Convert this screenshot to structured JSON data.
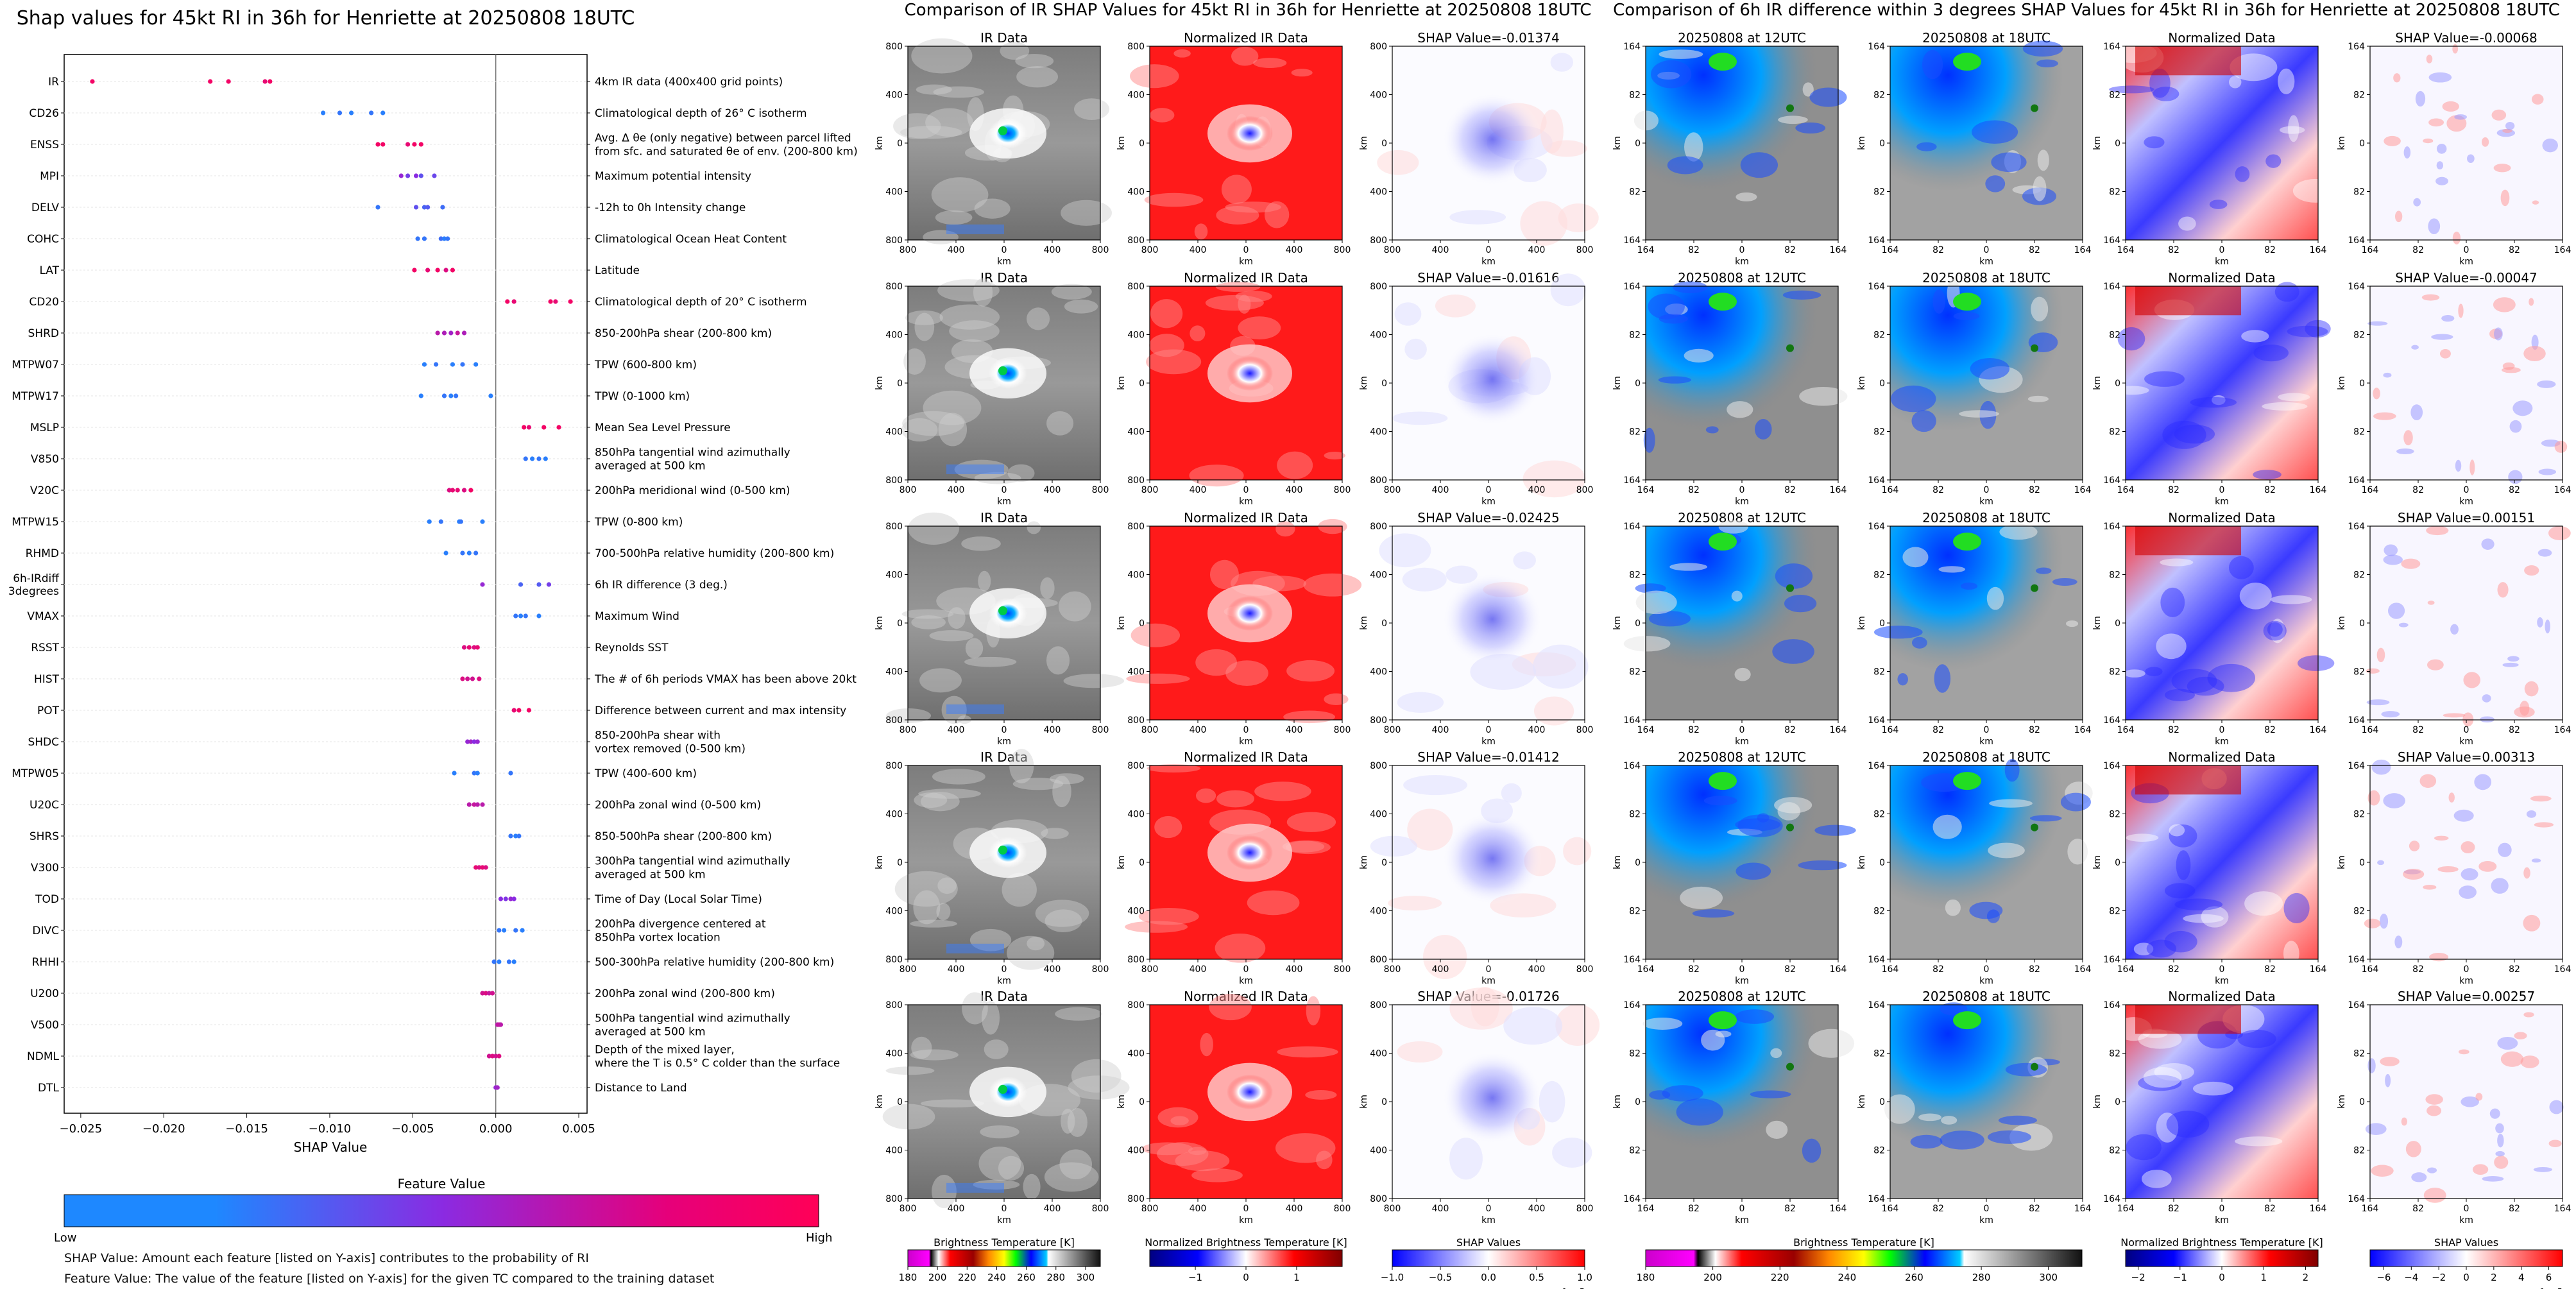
{
  "chart_data": [
    {
      "type": "scatter",
      "title": "Shap values for 45kt RI in 36h for Henriette at 20250808 18UTC",
      "xlabel": "SHAP Value",
      "ylabel": "",
      "xlim": [
        -0.026,
        0.0055
      ],
      "xticks": [
        "−0.025",
        "−0.020",
        "−0.015",
        "−0.010",
        "−0.005",
        "0.000",
        "0.005"
      ],
      "xtick_values": [
        -0.025,
        -0.02,
        -0.015,
        -0.01,
        -0.005,
        0.0,
        0.005
      ],
      "grid": false,
      "colorbar": {
        "title": "Feature Value",
        "low": "Low",
        "high": "High",
        "colors": [
          "#1e88ff",
          "#8a2be2",
          "#ff0057"
        ]
      },
      "features": [
        {
          "name": "IR",
          "desc": "4km IR data (400x400 grid points)",
          "points": [
            [
              -0.0243,
              0.95
            ],
            [
              -0.0172,
              0.95
            ],
            [
              -0.0161,
              0.95
            ],
            [
              -0.0139,
              0.9
            ],
            [
              -0.0136,
              0.95
            ]
          ]
        },
        {
          "name": "CD26",
          "desc": "Climatological depth of 26° C isotherm",
          "points": [
            [
              -0.0104,
              0.05
            ],
            [
              -0.0094,
              0.1
            ],
            [
              -0.0087,
              0.05
            ],
            [
              -0.0075,
              0.1
            ],
            [
              -0.0068,
              0.05
            ]
          ]
        },
        {
          "name": "ENSS",
          "desc": "Avg. Δ θe (only negative) between parcel lifted\nfrom sfc. and saturated θe of env. (200-800 km)",
          "points": [
            [
              -0.0071,
              0.95
            ],
            [
              -0.0068,
              0.95
            ],
            [
              -0.0053,
              0.9
            ],
            [
              -0.0049,
              0.95
            ],
            [
              -0.0045,
              0.95
            ]
          ]
        },
        {
          "name": "MPI",
          "desc": "Maximum potential intensity",
          "points": [
            [
              -0.0057,
              0.55
            ],
            [
              -0.0053,
              0.4
            ],
            [
              -0.0048,
              0.5
            ],
            [
              -0.0045,
              0.3
            ],
            [
              -0.0037,
              0.35
            ]
          ]
        },
        {
          "name": "DELV",
          "desc": "-12h to 0h Intensity change",
          "points": [
            [
              -0.0071,
              0.1
            ],
            [
              -0.0048,
              0.3
            ],
            [
              -0.0043,
              0.2
            ],
            [
              -0.0041,
              0.25
            ],
            [
              -0.0032,
              0.15
            ]
          ]
        },
        {
          "name": "COHC",
          "desc": "Climatological Ocean Heat Content",
          "points": [
            [
              -0.0047,
              0.1
            ],
            [
              -0.0043,
              0.1
            ],
            [
              -0.0033,
              0.15
            ],
            [
              -0.0031,
              0.05
            ],
            [
              -0.0029,
              0.1
            ]
          ]
        },
        {
          "name": "LAT",
          "desc": "Latitude",
          "points": [
            [
              -0.0049,
              0.95
            ],
            [
              -0.0041,
              0.9
            ],
            [
              -0.0035,
              0.95
            ],
            [
              -0.003,
              0.85
            ],
            [
              -0.0026,
              0.95
            ]
          ]
        },
        {
          "name": "CD20",
          "desc": "Climatological depth of 20° C isotherm",
          "points": [
            [
              0.0007,
              0.95
            ],
            [
              0.0011,
              0.9
            ],
            [
              0.0033,
              0.95
            ],
            [
              0.0036,
              0.9
            ],
            [
              0.0045,
              0.95
            ]
          ]
        },
        {
          "name": "SHRD",
          "desc": "850-200hPa shear (200-800 km)",
          "points": [
            [
              -0.0035,
              0.7
            ],
            [
              -0.0031,
              0.65
            ],
            [
              -0.0027,
              0.6
            ],
            [
              -0.0023,
              0.75
            ],
            [
              -0.0019,
              0.65
            ]
          ]
        },
        {
          "name": "MTPW07",
          "desc": "TPW (600-800 km)",
          "points": [
            [
              -0.0043,
              0.05
            ],
            [
              -0.0036,
              0.1
            ],
            [
              -0.0026,
              0.05
            ],
            [
              -0.002,
              0.1
            ],
            [
              -0.0012,
              0.05
            ]
          ]
        },
        {
          "name": "MTPW17",
          "desc": "TPW (0-1000 km)",
          "points": [
            [
              -0.0045,
              0.05
            ],
            [
              -0.0031,
              0.1
            ],
            [
              -0.0027,
              0.05
            ],
            [
              -0.0024,
              0.1
            ],
            [
              -0.0003,
              0.05
            ]
          ]
        },
        {
          "name": "MSLP",
          "desc": "Mean Sea Level Pressure",
          "points": [
            [
              0.0017,
              0.95
            ],
            [
              0.002,
              0.9
            ],
            [
              0.0029,
              0.95
            ],
            [
              0.0038,
              0.95
            ]
          ]
        },
        {
          "name": "V850",
          "desc": "850hPa tangential wind azimuthally\naveraged at 500 km",
          "points": [
            [
              0.0018,
              0.1
            ],
            [
              0.0022,
              0.05
            ],
            [
              0.0026,
              0.1
            ],
            [
              0.003,
              0.05
            ]
          ]
        },
        {
          "name": "V20C",
          "desc": "200hPa meridional wind (0-500 km)",
          "points": [
            [
              -0.0028,
              0.85
            ],
            [
              -0.0026,
              0.9
            ],
            [
              -0.0023,
              0.9
            ],
            [
              -0.0019,
              0.85
            ],
            [
              -0.0015,
              0.95
            ]
          ]
        },
        {
          "name": "MTPW15",
          "desc": "TPW (0-800 km)",
          "points": [
            [
              -0.004,
              0.05
            ],
            [
              -0.0033,
              0.1
            ],
            [
              -0.0022,
              0.05
            ],
            [
              -0.0021,
              0.1
            ],
            [
              -0.0008,
              0.05
            ]
          ]
        },
        {
          "name": "RHMD",
          "desc": "700-500hPa relative humidity (200-800 km)",
          "points": [
            [
              -0.003,
              0.05
            ],
            [
              -0.002,
              0.1
            ],
            [
              -0.0016,
              0.05
            ],
            [
              -0.0012,
              0.1
            ]
          ]
        },
        {
          "name": "6h-IRdiff\n3degrees",
          "desc": "6h IR difference (3 deg.)",
          "points": [
            [
              -0.0008,
              0.55
            ],
            [
              0.0015,
              0.2
            ],
            [
              0.0026,
              0.25
            ],
            [
              0.0032,
              0.4
            ]
          ]
        },
        {
          "name": "VMAX",
          "desc": "Maximum Wind",
          "points": [
            [
              0.0012,
              0.1
            ],
            [
              0.0015,
              0.05
            ],
            [
              0.0018,
              0.1
            ],
            [
              0.0026,
              0.05
            ]
          ]
        },
        {
          "name": "RSST",
          "desc": "Reynolds SST",
          "points": [
            [
              -0.0019,
              0.85
            ],
            [
              -0.0016,
              0.9
            ],
            [
              -0.0013,
              0.85
            ],
            [
              -0.0011,
              0.9
            ]
          ]
        },
        {
          "name": "HIST",
          "desc": "The # of 6h periods VMAX has been above 20kt",
          "points": [
            [
              -0.002,
              0.85
            ],
            [
              -0.0017,
              0.8
            ],
            [
              -0.0014,
              0.8
            ],
            [
              -0.001,
              0.85
            ]
          ]
        },
        {
          "name": "POT",
          "desc": "Difference between current and max intensity",
          "points": [
            [
              0.0011,
              0.9
            ],
            [
              0.0014,
              0.95
            ],
            [
              0.002,
              0.95
            ]
          ]
        },
        {
          "name": "SHDC",
          "desc": "850-200hPa shear with\nvortex removed (0-500 km)",
          "points": [
            [
              -0.0017,
              0.55
            ],
            [
              -0.0015,
              0.6
            ],
            [
              -0.0013,
              0.5
            ],
            [
              -0.0011,
              0.55
            ]
          ]
        },
        {
          "name": "MTPW05",
          "desc": "TPW (400-600 km)",
          "points": [
            [
              -0.0025,
              0.05
            ],
            [
              -0.0013,
              0.1
            ],
            [
              -0.0011,
              0.05
            ],
            [
              0.0009,
              0.1
            ]
          ]
        },
        {
          "name": "U20C",
          "desc": "200hPa zonal wind (0-500 km)",
          "points": [
            [
              -0.0016,
              0.7
            ],
            [
              -0.0013,
              0.75
            ],
            [
              -0.0011,
              0.7
            ],
            [
              -0.0008,
              0.7
            ]
          ]
        },
        {
          "name": "SHRS",
          "desc": "850-500hPa shear (200-800 km)",
          "points": [
            [
              0.0009,
              0.1
            ],
            [
              0.0012,
              0.05
            ],
            [
              0.0014,
              0.1
            ]
          ]
        },
        {
          "name": "V300",
          "desc": "300hPa tangential wind azimuthally\naveraged at 500 km",
          "points": [
            [
              -0.0012,
              0.9
            ],
            [
              -0.001,
              0.85
            ],
            [
              -0.0008,
              0.9
            ],
            [
              -0.0006,
              0.85
            ]
          ]
        },
        {
          "name": "TOD",
          "desc": "Time of Day (Local Solar Time)",
          "points": [
            [
              0.0003,
              0.5
            ],
            [
              0.0006,
              0.45
            ],
            [
              0.0009,
              0.55
            ],
            [
              0.0011,
              0.5
            ]
          ]
        },
        {
          "name": "DIVC",
          "desc": "200hPa divergence centered at\n850hPa vortex location",
          "points": [
            [
              0.0002,
              0.1
            ],
            [
              0.0005,
              0.05
            ],
            [
              0.0012,
              0.1
            ],
            [
              0.0016,
              0.05
            ]
          ]
        },
        {
          "name": "RHHI",
          "desc": "500-300hPa relative humidity (200-800 km)",
          "points": [
            [
              -0.0001,
              0.1
            ],
            [
              0.0002,
              0.05
            ],
            [
              0.0008,
              0.1
            ],
            [
              0.0011,
              0.05
            ]
          ]
        },
        {
          "name": "U200",
          "desc": "200hPa zonal wind (200-800 km)",
          "points": [
            [
              -0.0008,
              0.8
            ],
            [
              -0.0006,
              0.85
            ],
            [
              -0.0004,
              0.75
            ],
            [
              -0.0002,
              0.8
            ]
          ]
        },
        {
          "name": "V500",
          "desc": "500hPa tangential wind azimuthally\naveraged at 500 km",
          "points": [
            [
              0.0001,
              0.7
            ],
            [
              0.0002,
              0.75
            ],
            [
              0.0003,
              0.7
            ]
          ]
        },
        {
          "name": "NDML",
          "desc": "Depth of the mixed layer,\nwhere the T is 0.5° C colder than the surface",
          "points": [
            [
              -0.0004,
              0.8
            ],
            [
              -0.0002,
              0.85
            ],
            [
              0.0,
              0.8
            ],
            [
              0.0002,
              0.85
            ]
          ]
        },
        {
          "name": "DTL",
          "desc": "Distance to Land",
          "points": [
            [
              0.0,
              0.55
            ],
            [
              0.0001,
              0.6
            ]
          ]
        }
      ]
    },
    {
      "type": "heatmap",
      "title": "Comparison of IR SHAP Values for 45kt RI in 36h for Henriette at 20250808 18UTC",
      "columns": [
        {
          "key": "ir",
          "title": "IR Data"
        },
        {
          "key": "nir",
          "title": "Normalized IR Data"
        },
        {
          "key": "shap",
          "title": "SHAP Value"
        }
      ],
      "rows": [
        {
          "shap_value": "SHAP Value=-0.01374"
        },
        {
          "shap_value": "SHAP Value=-0.01616"
        },
        {
          "shap_value": "SHAP Value=-0.02425"
        },
        {
          "shap_value": "SHAP Value=-0.01412"
        },
        {
          "shap_value": "SHAP Value=-0.01726"
        }
      ],
      "axis_label": "km",
      "xticks": [
        "800",
        "400",
        "0",
        "400",
        "800"
      ],
      "yticks": [
        "800",
        "400",
        "0",
        "400",
        "800"
      ],
      "colorbars": [
        {
          "label": "Brightness Temperature [K]",
          "ticks": [
            "180",
            "200",
            "220",
            "240",
            "260",
            "280",
            "300"
          ],
          "range": [
            180,
            310
          ]
        },
        {
          "label": "Normalized Brightness Temperature [K]",
          "ticks": [
            "−1",
            "0",
            "1"
          ],
          "range": [
            -1.9,
            1.9
          ]
        },
        {
          "label": "SHAP Values",
          "ticks": [
            "−1.0",
            "−0.5",
            "0.0",
            "0.5",
            "1.0"
          ],
          "range": [
            -1.0,
            1.0
          ],
          "multiplier": "1e−5"
        }
      ]
    },
    {
      "type": "heatmap",
      "title": "Comparison of 6h IR difference within 3 degrees SHAP Values for 45kt RI in 36h for Henriette at 20250808 18UTC",
      "columns": [
        {
          "key": "t12",
          "title": "20250808 at 12UTC"
        },
        {
          "key": "t18",
          "title": "20250808 at 18UTC"
        },
        {
          "key": "norm",
          "title": "Normalized Data"
        },
        {
          "key": "shap",
          "title": "SHAP Value"
        }
      ],
      "rows": [
        {
          "shap_value": "SHAP Value=-0.00068"
        },
        {
          "shap_value": "SHAP Value=-0.00047"
        },
        {
          "shap_value": "SHAP Value=0.00151"
        },
        {
          "shap_value": "SHAP Value=0.00313"
        },
        {
          "shap_value": "SHAP Value=0.00257"
        }
      ],
      "axis_label": "km",
      "xticks": [
        "164",
        "82",
        "0",
        "82",
        "164"
      ],
      "yticks": [
        "164",
        "82",
        "0",
        "82",
        "164"
      ],
      "colorbars": [
        {
          "label": "Brightness Temperature [K]",
          "ticks": [
            "180",
            "200",
            "220",
            "240",
            "260",
            "280",
            "300"
          ],
          "range": [
            180,
            310
          ]
        },
        {
          "label": "Normalized Brightness Temperature [K]",
          "ticks": [
            "−2",
            "−1",
            "0",
            "1",
            "2"
          ],
          "range": [
            -2.3,
            2.3
          ]
        },
        {
          "label": "SHAP Values",
          "ticks": [
            "−6",
            "−4",
            "−2",
            "0",
            "2",
            "4",
            "6"
          ],
          "range": [
            -7,
            7
          ],
          "multiplier": "1e−5"
        }
      ]
    }
  ],
  "footnotes": {
    "shap": "SHAP Value: Amount each feature [listed on Y-axis] contributes to the probability of RI",
    "feature": "Feature Value: The value of the feature [listed on Y-axis] for the given TC compared to the training dataset"
  }
}
